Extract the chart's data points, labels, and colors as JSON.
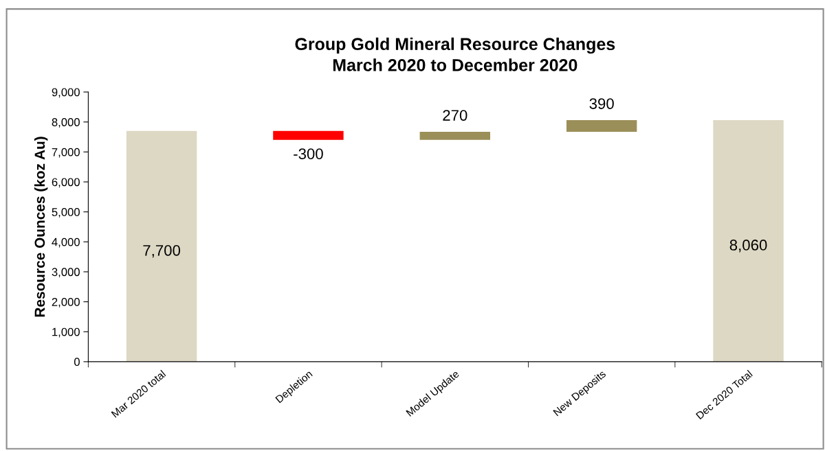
{
  "chart_data": {
    "type": "bar",
    "title": "Group Gold Mineral Resource Changes\nMarch 2020 to December 2020",
    "ylabel": "Resource Ounces (koz Au)",
    "categories": [
      "Mar 2020 total",
      "Depletion",
      "Model Update",
      "New Deposits",
      "Dec 2020 Total"
    ],
    "values": [
      7700,
      -300,
      270,
      390,
      8060
    ],
    "base": [
      0,
      7700,
      7400,
      7670,
      0
    ],
    "colors": [
      "#ddd8c4",
      "#ff0000",
      "#9b8f59",
      "#9b8f59",
      "#ddd8c4"
    ],
    "value_labels": [
      "7,700",
      "-300",
      "270",
      "390",
      "8,060"
    ],
    "ylim": [
      0,
      9000
    ],
    "yticks": [
      0,
      {
        "value": 1000,
        "label": "1,000"
      },
      {
        "value": 2000,
        "label": "2,000"
      },
      {
        "value": 3000,
        "label": "3,000"
      },
      {
        "value": 4000,
        "label": "4,000"
      },
      {
        "value": 5000,
        "label": "5,000"
      },
      {
        "value": 6000,
        "label": "6,000"
      },
      {
        "value": 7000,
        "label": "7,000"
      },
      {
        "value": 8000,
        "label": "8,000"
      },
      {
        "value": 9000,
        "label": "9,000"
      }
    ],
    "grid": false,
    "legend": false
  }
}
